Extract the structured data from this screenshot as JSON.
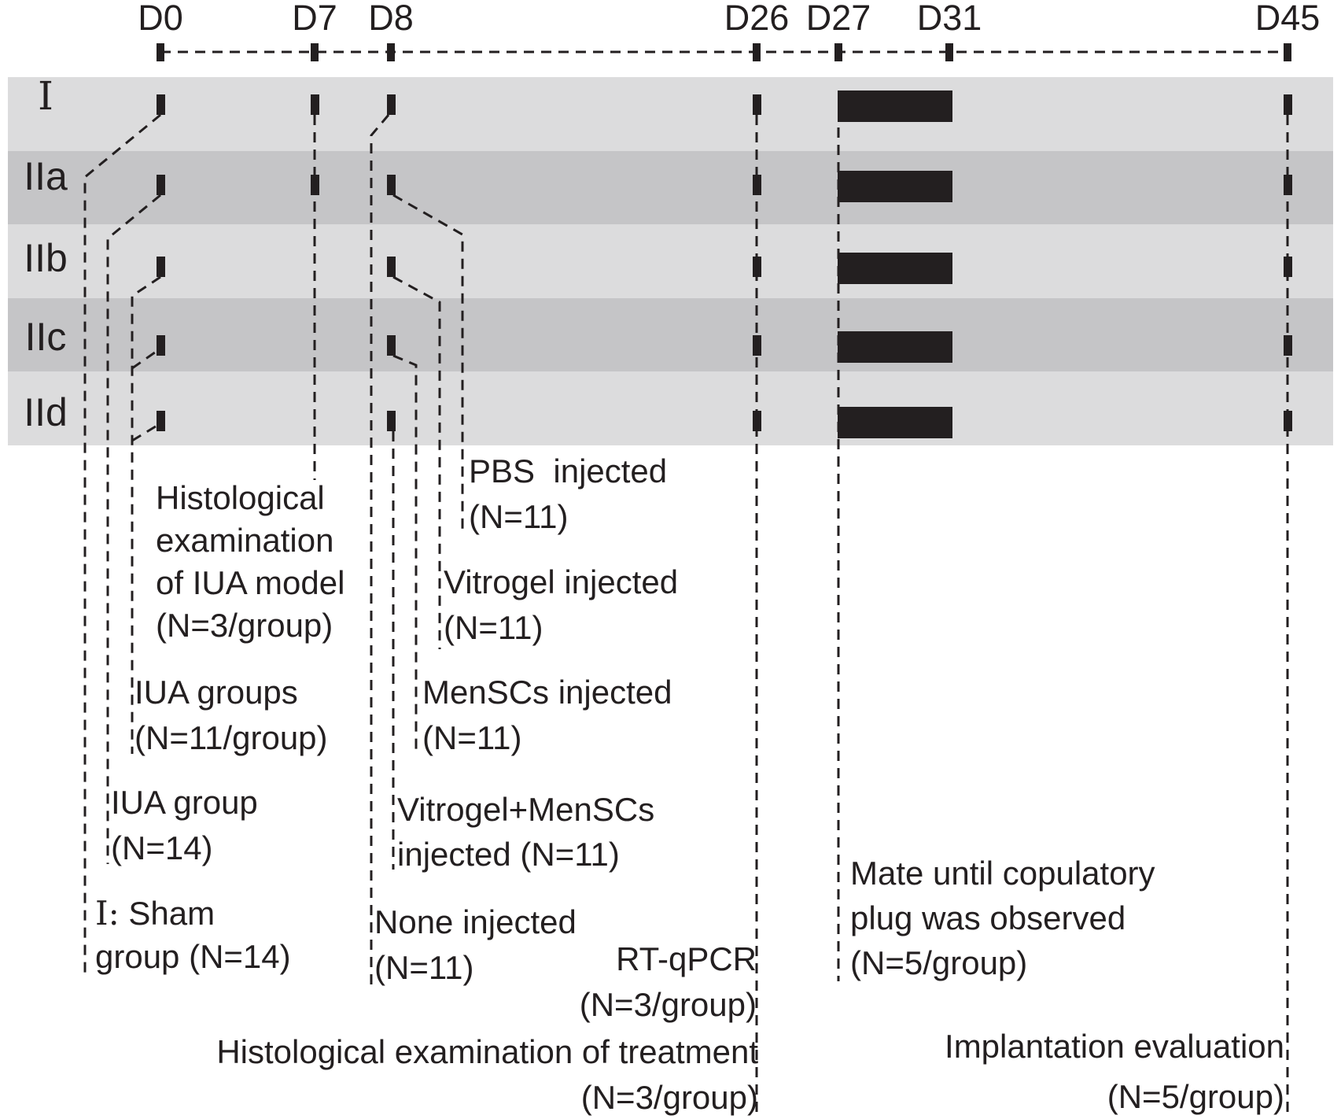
{
  "figure_name": "study-design-timeline",
  "colors": {
    "ink": "#231f20",
    "band_light": "#dcdcdd",
    "band_dark": "#c5c5c7",
    "background": "#ffffff"
  },
  "timeline": {
    "days": [
      {
        "id": "D0",
        "label": "D0"
      },
      {
        "id": "D7",
        "label": "D7"
      },
      {
        "id": "D8",
        "label": "D8"
      },
      {
        "id": "D26",
        "label": "D26"
      },
      {
        "id": "D27",
        "label": "D27"
      },
      {
        "id": "D31",
        "label": "D31"
      },
      {
        "id": "D45",
        "label": "D45"
      }
    ]
  },
  "rows": [
    {
      "id": "I",
      "label": "I",
      "ticks": [
        "D0",
        "D7",
        "D8",
        "D26",
        "D45"
      ],
      "bar": {
        "from": "D27",
        "to": "D31"
      }
    },
    {
      "id": "IIa",
      "label": "IIa",
      "ticks": [
        "D0",
        "D7",
        "D8",
        "D26",
        "D45"
      ],
      "bar": {
        "from": "D27",
        "to": "D31"
      }
    },
    {
      "id": "IIb",
      "label": "IIb",
      "ticks": [
        "D0",
        "D8",
        "D26",
        "D45"
      ],
      "bar": {
        "from": "D27",
        "to": "D31"
      }
    },
    {
      "id": "IIc",
      "label": "IIc",
      "ticks": [
        "D0",
        "D8",
        "D26",
        "D45"
      ],
      "bar": {
        "from": "D27",
        "to": "D31"
      }
    },
    {
      "id": "IId",
      "label": "IId",
      "ticks": [
        "D0",
        "D8",
        "D26",
        "D45"
      ],
      "bar": {
        "from": "D27",
        "to": "D31"
      }
    }
  ],
  "annotations": [
    {
      "id": "hist-iua",
      "lines": [
        "Histological",
        "examination",
        "of IUA model",
        "(N=3/group)"
      ]
    },
    {
      "id": "iua-groups",
      "lines": [
        "IUA groups",
        "(N=11/group)"
      ]
    },
    {
      "id": "iua-group",
      "lines": [
        "IUA group",
        "(N=14)"
      ]
    },
    {
      "id": "sham",
      "lines": [
        "I: Sham",
        "group (N=14)"
      ]
    },
    {
      "id": "pbs",
      "lines": [
        "PBS  injected",
        "(N=11)"
      ]
    },
    {
      "id": "vitrogel",
      "lines": [
        "Vitrogel injected",
        "(N=11)"
      ]
    },
    {
      "id": "menscs",
      "lines": [
        "MenSCs injected",
        "(N=11)"
      ]
    },
    {
      "id": "vitrogel-menscs",
      "lines": [
        "Vitrogel+MenSCs",
        "injected (N=11)"
      ]
    },
    {
      "id": "none",
      "lines": [
        "None injected",
        "(N=11)"
      ]
    },
    {
      "id": "rt-qpcr",
      "lines": [
        "RT-qPCR",
        "(N=3/group)"
      ]
    },
    {
      "id": "hist-treatment",
      "lines": [
        "Histological examination of treatment",
        "(N=3/group)"
      ]
    },
    {
      "id": "mate",
      "lines": [
        "Mate until copulatory",
        "plug was observed",
        "(N=5/group)"
      ]
    },
    {
      "id": "implantation",
      "lines": [
        "Implantation evaluation",
        "(N=5/group)"
      ]
    }
  ]
}
